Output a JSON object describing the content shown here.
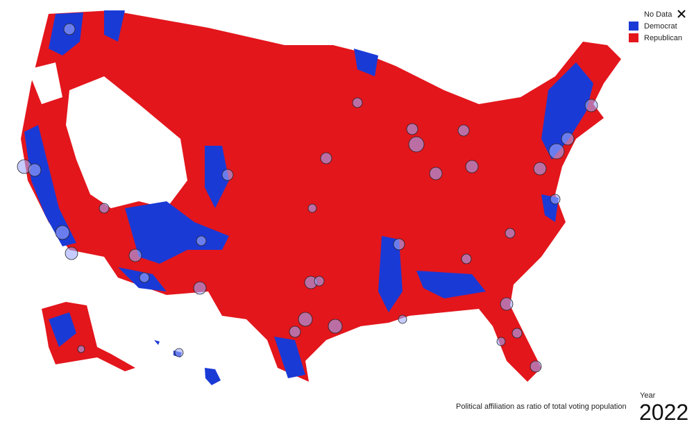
{
  "legend": [
    {
      "label": "No Data",
      "color": "#ffffff"
    },
    {
      "label": "Democrat",
      "color": "#1a3ad6"
    },
    {
      "label": "Republican",
      "color": "#e3161c"
    }
  ],
  "caption": "Political affiliation as ratio of total voting population",
  "year": {
    "label": "Year",
    "value": 2022
  }
}
